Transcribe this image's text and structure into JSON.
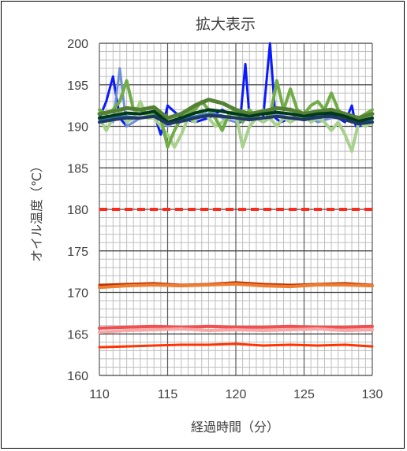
{
  "chart_data": {
    "type": "line",
    "title": "拡大表示",
    "xlabel": "経過時間（分）",
    "ylabel": "オイル温度（℃）",
    "xlim": [
      110,
      130
    ],
    "ylim": [
      160,
      200
    ],
    "xticks": [
      110,
      115,
      120,
      125,
      130
    ],
    "yticks": [
      160,
      165,
      170,
      175,
      180,
      185,
      190,
      195,
      200
    ],
    "minor_x_step": 0.5,
    "minor_y_step": 1,
    "grid": true,
    "legend": "none",
    "series": [
      {
        "color": "#ff2a1a",
        "dashed": true,
        "width": 4,
        "x": [
          110,
          130
        ],
        "y": [
          180,
          180
        ]
      },
      {
        "color": "#c03000",
        "width": 3,
        "x": [
          110,
          112,
          114,
          116,
          118,
          120,
          122,
          124,
          126,
          128,
          130
        ],
        "y": [
          170.9,
          171.0,
          171.1,
          170.9,
          171.0,
          171.2,
          171.0,
          170.9,
          171.0,
          171.1,
          170.9
        ]
      },
      {
        "color": "#ed7d31",
        "width": 4,
        "x": [
          110,
          112,
          114,
          116,
          118,
          120,
          122,
          124,
          126,
          128,
          130
        ],
        "y": [
          170.6,
          170.8,
          170.9,
          170.8,
          170.9,
          171.0,
          170.8,
          170.7,
          170.9,
          170.9,
          170.8
        ]
      },
      {
        "color": "#f05050",
        "width": 4,
        "x": [
          110,
          112,
          114,
          116,
          118,
          120,
          122,
          124,
          126,
          128,
          130
        ],
        "y": [
          165.7,
          165.8,
          165.9,
          165.8,
          165.9,
          165.8,
          165.8,
          165.9,
          165.8,
          165.8,
          165.9
        ]
      },
      {
        "color": "#f7a8a8",
        "width": 4,
        "x": [
          110,
          112,
          114,
          116,
          118,
          120,
          122,
          124,
          126,
          128,
          130
        ],
        "y": [
          165.2,
          165.4,
          165.5,
          165.6,
          165.4,
          165.5,
          165.4,
          165.5,
          165.6,
          165.4,
          165.5
        ]
      },
      {
        "color": "#ff3300",
        "width": 3,
        "x": [
          110,
          112,
          114,
          116,
          118,
          120,
          122,
          124,
          126,
          128,
          130
        ],
        "y": [
          163.4,
          163.5,
          163.6,
          163.7,
          163.7,
          163.8,
          163.6,
          163.7,
          163.6,
          163.7,
          163.5
        ]
      },
      {
        "color": "#0a1aff",
        "width": 3,
        "x": [
          110,
          110.5,
          111,
          111.5,
          112,
          113,
          114,
          114.5,
          115,
          116,
          117,
          118,
          119,
          120,
          120.3,
          120.7,
          121,
          122,
          122.5,
          122.9,
          123.3,
          124,
          125,
          126,
          127,
          128,
          128.5,
          128.8,
          129,
          130
        ],
        "y": [
          191,
          193,
          196,
          191,
          190,
          191,
          191.5,
          189,
          192.5,
          191,
          190.5,
          191,
          192,
          191,
          190.5,
          197.5,
          191,
          191,
          200,
          191,
          190.5,
          191,
          191.5,
          191,
          191.5,
          190.5,
          192.5,
          190,
          190,
          190.5
        ]
      },
      {
        "color": "#7191d6",
        "width": 3,
        "x": [
          110,
          110.5,
          111,
          111.5,
          112,
          113,
          114,
          115,
          116,
          117,
          118,
          119,
          120,
          121,
          122,
          123,
          124,
          125,
          126,
          127,
          128,
          129,
          130
        ],
        "y": [
          190.5,
          191,
          190.5,
          197,
          190,
          191,
          191.5,
          190,
          191,
          191,
          192,
          191,
          190.5,
          191,
          191,
          191.5,
          191,
          191.5,
          190.5,
          191,
          191,
          190.5,
          190.5
        ]
      },
      {
        "color": "#a9d18e",
        "width": 4,
        "x": [
          110,
          110.5,
          111,
          111.5,
          112,
          112.5,
          113,
          113.5,
          114,
          114.5,
          115,
          115.5,
          116,
          116.5,
          117,
          117.5,
          118,
          118.5,
          119,
          119.5,
          120,
          120.5,
          121,
          121.5,
          122,
          122.5,
          123,
          123.5,
          124,
          124.5,
          125,
          125.5,
          126,
          126.5,
          127,
          127.5,
          128,
          128.5,
          129,
          129.5,
          130
        ],
        "y": [
          191,
          189.5,
          191,
          192,
          190.5,
          191,
          193,
          191,
          191,
          190,
          189,
          187.5,
          189,
          191,
          190.5,
          192,
          191,
          190,
          190.5,
          191,
          191.5,
          187.5,
          190,
          191,
          190.5,
          191,
          190,
          191,
          190.5,
          191,
          191.5,
          190.5,
          191,
          190.5,
          189.5,
          190.5,
          189,
          187,
          190.5,
          190,
          190.5
        ]
      },
      {
        "color": "#70ad47",
        "width": 4,
        "x": [
          110,
          110.5,
          111,
          111.5,
          112,
          112.5,
          113,
          113.5,
          114,
          114.5,
          115,
          115.5,
          116,
          116.5,
          117,
          117.5,
          118,
          118.5,
          119,
          119.5,
          120,
          120.5,
          121,
          121.5,
          122,
          122.5,
          123,
          123.5,
          124,
          124.5,
          125,
          125.5,
          126,
          126.5,
          127,
          127.5,
          128,
          128.5,
          129,
          129.5,
          130
        ],
        "y": [
          192,
          191.5,
          192,
          193,
          195.5,
          192,
          192,
          191.5,
          191.5,
          191,
          187.5,
          189.5,
          191,
          191.5,
          192,
          193,
          192,
          191,
          189.5,
          191.5,
          192,
          190.5,
          192,
          191,
          192,
          191,
          195.5,
          192,
          194.5,
          192,
          191.5,
          192.5,
          193,
          192,
          194,
          192,
          191,
          190.5,
          191,
          191.5,
          192
        ]
      },
      {
        "color": "#548235",
        "width": 5,
        "x": [
          110,
          111,
          112,
          113,
          114,
          115,
          116,
          117,
          118,
          119,
          120,
          121,
          122,
          123,
          124,
          125,
          126,
          127,
          128,
          129,
          130
        ],
        "y": [
          191.5,
          191.8,
          192.2,
          192.0,
          192.3,
          191.0,
          191.5,
          192.5,
          193.2,
          192.8,
          192.0,
          191.5,
          191.8,
          192.2,
          192.0,
          191.5,
          191.8,
          192.0,
          191.5,
          191.0,
          191.5
        ]
      },
      {
        "color": "#2e75b6",
        "width": 3,
        "x": [
          110,
          111,
          112,
          113,
          114,
          115,
          116,
          117,
          118,
          119,
          120,
          121,
          122,
          123,
          124,
          125,
          126,
          127,
          128,
          129,
          130
        ],
        "y": [
          190.8,
          191,
          191.2,
          191,
          191.3,
          190.5,
          190.8,
          191.2,
          191.5,
          191.3,
          191,
          190.8,
          191,
          191.2,
          191,
          190.8,
          191,
          191.2,
          190.8,
          190.5,
          190.8
        ]
      },
      {
        "color": "#003a1a",
        "width": 4,
        "x": [
          110,
          111,
          112,
          113,
          114,
          115,
          116,
          117,
          118,
          119,
          120,
          121,
          122,
          123,
          124,
          125,
          126,
          127,
          128,
          129,
          130
        ],
        "y": [
          191,
          191.3,
          191.6,
          191.5,
          191.8,
          190.5,
          191,
          191.6,
          192,
          191.8,
          191.5,
          191.2,
          191.5,
          191.7,
          191.5,
          191.2,
          191.5,
          191.6,
          191.2,
          190.6,
          191
        ]
      },
      {
        "color": "#1f3864",
        "width": 4,
        "x": [
          110,
          111,
          112,
          113,
          114,
          115,
          116,
          117,
          118,
          119,
          120,
          121,
          122,
          123,
          124,
          125,
          126,
          127,
          128,
          129,
          130
        ],
        "y": [
          190.5,
          190.8,
          191,
          191,
          191.2,
          190.3,
          190.6,
          191,
          191.3,
          191.2,
          191,
          190.8,
          191,
          191.2,
          191,
          190.8,
          191.1,
          191.2,
          190.8,
          190.3,
          190.5
        ]
      }
    ]
  }
}
